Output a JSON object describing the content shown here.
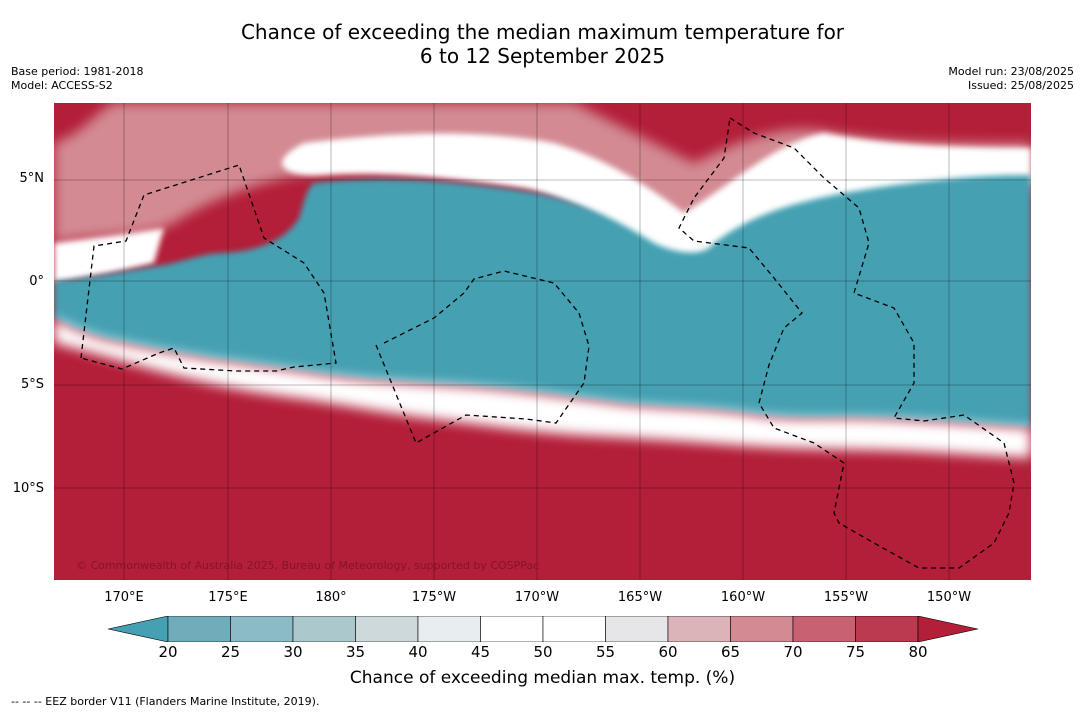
{
  "title_line1": "Chance of exceeding the median maximum temperature for",
  "title_line2": "6 to 12 September 2025",
  "meta_left": [
    "Base period: 1981-2018",
    "Model: ACCESS-S2"
  ],
  "meta_right": [
    "Model run: 23/08/2025",
    "Issued: 25/08/2025"
  ],
  "lat_labels": [
    "5°N",
    "0°",
    "5°S",
    "10°S"
  ],
  "lon_labels": [
    "170°E",
    "175°E",
    "180°",
    "175°W",
    "170°W",
    "165°W",
    "160°W",
    "155°W",
    "150°W"
  ],
  "copyright": "© Commonwealth of Australia 2025, Bureau of Meteorology, supported by COSPPac",
  "colorbar": {
    "ticks": [
      "20",
      "25",
      "30",
      "35",
      "40",
      "45",
      "50",
      "55",
      "60",
      "65",
      "70",
      "75",
      "80"
    ],
    "colors": [
      "#44a0b2",
      "#6eadb9",
      "#8bbcc6",
      "#abc8cc",
      "#ced9dc",
      "#e8eef0",
      "#ffffff",
      "#ffffff",
      "#e6e6e8",
      "#dbb4b9",
      "#d38a93",
      "#c86171",
      "#bc3a50",
      "#b31e38"
    ],
    "title": "Chance of exceeding median max. temp. (%)"
  },
  "footnote": "-- -- -- EEZ border V11 (Flanders Marine Institute, 2019).",
  "map_colors": {
    "below": "#44a0b2",
    "above": "#b31e38",
    "near": "#ffffff",
    "pink": "#d38a93"
  }
}
